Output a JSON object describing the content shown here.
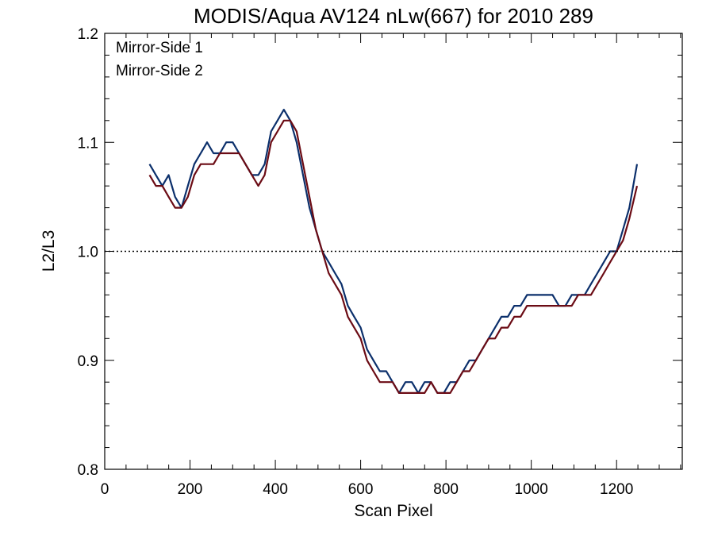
{
  "colors": {
    "ms1": "#0b2f6b",
    "ms2": "#6b0b14",
    "ref": "#000000"
  },
  "chart_data": {
    "type": "line",
    "title": "MODIS/Aqua AV124 nLw(667) for 2010 289",
    "xlabel": "Scan Pixel",
    "ylabel": "L2/L3",
    "xlim": [
      0,
      1354
    ],
    "ylim": [
      0.8,
      1.2
    ],
    "xticks": [
      "0",
      "200",
      "400",
      "600",
      "800",
      "1000",
      "1200"
    ],
    "yticks": [
      "0.8",
      "0.9",
      "1.0",
      "1.1",
      "1.2"
    ],
    "reference_line": 1.0,
    "legend": {
      "position": "top-left",
      "entries": [
        {
          "name": "Mirror-Side 1",
          "color": "#0b2f6b"
        },
        {
          "name": "Mirror-Side 2",
          "color": "#6b0b14"
        }
      ]
    },
    "x": [
      105,
      120,
      135,
      150,
      165,
      180,
      195,
      210,
      225,
      240,
      255,
      270,
      285,
      300,
      315,
      330,
      345,
      360,
      375,
      390,
      405,
      420,
      435,
      450,
      465,
      480,
      495,
      510,
      525,
      540,
      555,
      570,
      585,
      600,
      615,
      630,
      645,
      660,
      675,
      690,
      705,
      720,
      735,
      750,
      765,
      780,
      795,
      810,
      825,
      840,
      855,
      870,
      885,
      900,
      915,
      930,
      945,
      960,
      975,
      990,
      1005,
      1020,
      1035,
      1050,
      1065,
      1080,
      1095,
      1110,
      1125,
      1140,
      1155,
      1170,
      1185,
      1200,
      1215,
      1230,
      1248
    ],
    "series": [
      {
        "name": "Mirror-Side 1",
        "values": [
          1.08,
          1.07,
          1.06,
          1.07,
          1.05,
          1.04,
          1.06,
          1.08,
          1.09,
          1.1,
          1.09,
          1.09,
          1.1,
          1.1,
          1.09,
          1.08,
          1.07,
          1.07,
          1.08,
          1.11,
          1.12,
          1.13,
          1.12,
          1.1,
          1.07,
          1.04,
          1.02,
          1.0,
          0.99,
          0.98,
          0.97,
          0.95,
          0.94,
          0.93,
          0.91,
          0.9,
          0.89,
          0.89,
          0.88,
          0.87,
          0.88,
          0.88,
          0.87,
          0.88,
          0.88,
          0.87,
          0.87,
          0.88,
          0.88,
          0.89,
          0.9,
          0.9,
          0.91,
          0.92,
          0.93,
          0.94,
          0.94,
          0.95,
          0.95,
          0.96,
          0.96,
          0.96,
          0.96,
          0.96,
          0.95,
          0.95,
          0.96,
          0.96,
          0.96,
          0.97,
          0.98,
          0.99,
          1.0,
          1.0,
          1.02,
          1.04,
          1.08
        ]
      },
      {
        "name": "Mirror-Side 2",
        "values": [
          1.07,
          1.06,
          1.06,
          1.05,
          1.04,
          1.04,
          1.05,
          1.07,
          1.08,
          1.08,
          1.08,
          1.09,
          1.09,
          1.09,
          1.09,
          1.08,
          1.07,
          1.06,
          1.07,
          1.1,
          1.11,
          1.12,
          1.12,
          1.11,
          1.08,
          1.05,
          1.02,
          1.0,
          0.98,
          0.97,
          0.96,
          0.94,
          0.93,
          0.92,
          0.9,
          0.89,
          0.88,
          0.88,
          0.88,
          0.87,
          0.87,
          0.87,
          0.87,
          0.87,
          0.88,
          0.87,
          0.87,
          0.87,
          0.88,
          0.89,
          0.89,
          0.9,
          0.91,
          0.92,
          0.92,
          0.93,
          0.93,
          0.94,
          0.94,
          0.95,
          0.95,
          0.95,
          0.95,
          0.95,
          0.95,
          0.95,
          0.95,
          0.96,
          0.96,
          0.96,
          0.97,
          0.98,
          0.99,
          1.0,
          1.01,
          1.03,
          1.06
        ]
      }
    ]
  }
}
